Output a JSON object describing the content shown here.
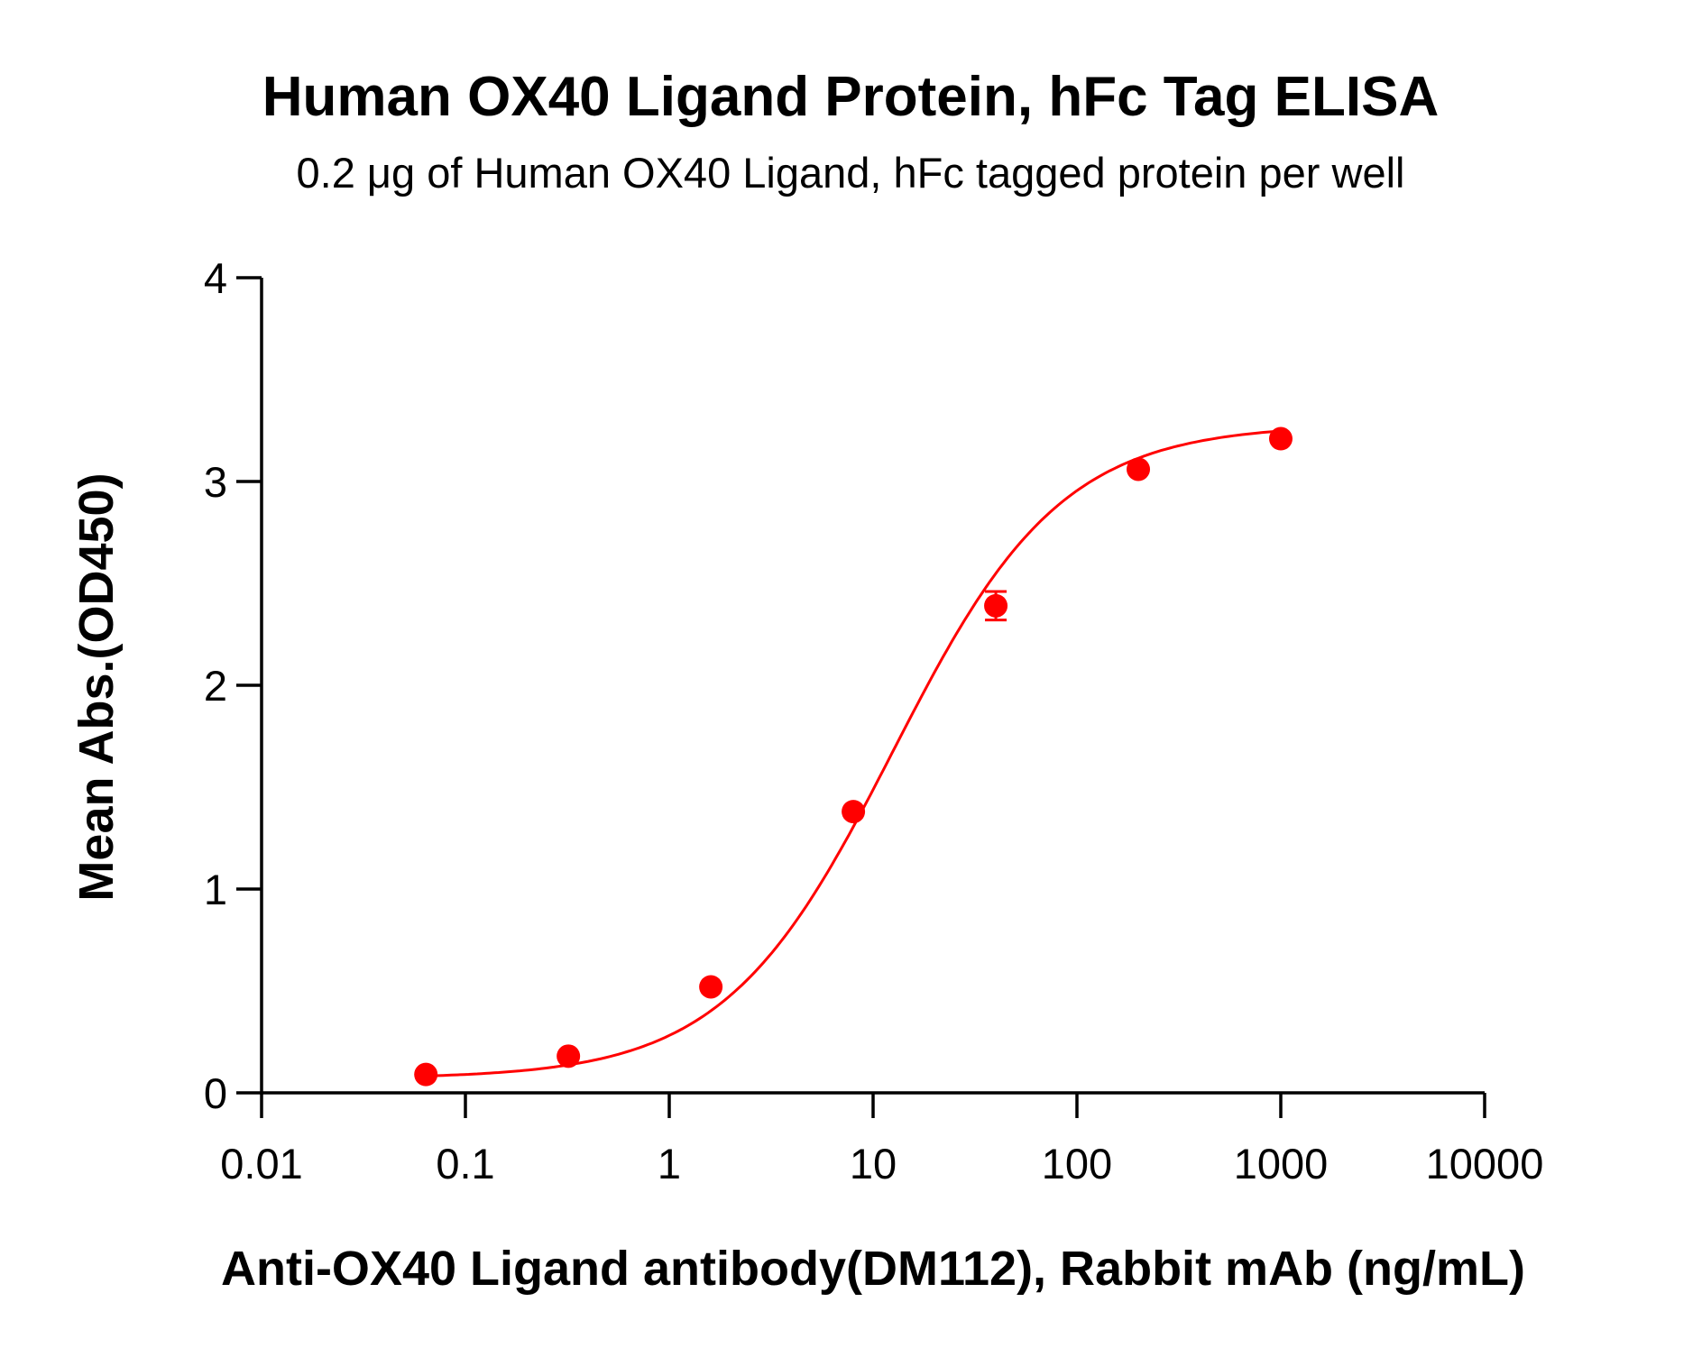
{
  "chart_data": {
    "type": "scatter",
    "title": "Human OX40 Ligand Protein, hFc Tag ELISA",
    "subtitle": "0.2 μg of Human OX40 Ligand, hFc tagged protein per well",
    "xlabel": "Anti-OX40 Ligand antibody(DM112), Rabbit mAb (ng/mL)",
    "ylabel": "Mean Abs.(OD450)",
    "xscale": "log",
    "xlim": [
      0.01,
      10000
    ],
    "ylim": [
      0,
      4
    ],
    "xticks": [
      "0.01",
      "0.1",
      "1",
      "10",
      "100",
      "1000",
      "10000"
    ],
    "yticks": [
      "0",
      "1",
      "2",
      "3",
      "4"
    ],
    "grid": false,
    "color": "#ff0000",
    "fit": "sigmoidal curve",
    "x": [
      0.064,
      0.32,
      1.6,
      8,
      40,
      200,
      1000
    ],
    "y": [
      0.09,
      0.18,
      0.52,
      1.38,
      2.39,
      3.06,
      3.21
    ],
    "yerr": [
      0.01,
      0.01,
      0.01,
      0.02,
      0.07,
      0.02,
      0.02
    ]
  }
}
